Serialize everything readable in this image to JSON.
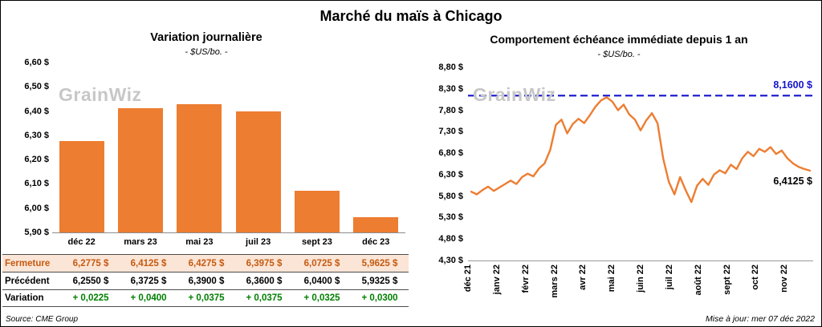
{
  "title": "Marché du maïs à Chicago",
  "watermark": "GrainWiz",
  "colors": {
    "close_row_bg": "#FBE5D6",
    "close_text": "#C55A11",
    "variation_text": "#008000"
  },
  "footer": {
    "source": "Source: CME Group",
    "updated": "Mise à jour: mer 07 déc 2022"
  },
  "table": {
    "rows": [
      {
        "label": "Fermeture",
        "style": "close",
        "values": [
          "6,2775  $",
          "6,4125  $",
          "6,4275  $",
          "6,3975  $",
          "6,0725  $",
          "5,9625  $"
        ]
      },
      {
        "label": "Précédent",
        "style": "prev",
        "values": [
          "6,2550  $",
          "6,3725  $",
          "6,3900  $",
          "6,3600  $",
          "6,0400  $",
          "5,9325  $"
        ]
      },
      {
        "label": "Variation",
        "style": "var",
        "values": [
          "+ 0,0225",
          "+ 0,0400",
          "+ 0,0375",
          "+ 0,0375",
          "+ 0,0325",
          "+ 0,0300"
        ]
      }
    ]
  },
  "chart_data": [
    {
      "type": "bar",
      "title": "Variation journalière",
      "subtitle": "- $US/bo. -",
      "categories": [
        "déc 22",
        "mars 23",
        "mai 23",
        "juil 23",
        "sept 23",
        "déc 23"
      ],
      "values": [
        6.2775,
        6.4125,
        6.4275,
        6.3975,
        6.0725,
        5.9625
      ],
      "ylim": [
        5.9,
        6.6
      ],
      "y_tick_labels": [
        "6,60 $",
        "6,50 $",
        "6,40 $",
        "6,30 $",
        "6,20 $",
        "6,10 $",
        "6,00 $",
        "5,90 $"
      ],
      "bar_color": "#ED7D31",
      "grid": false,
      "xlabel": "",
      "ylabel": ""
    },
    {
      "type": "line",
      "title": "Comportement échéance immédiate depuis 1 an",
      "subtitle": "- $US/bo. -",
      "x_tick_labels": [
        "déc 21",
        "janv 22",
        "févr 22",
        "mars 22",
        "avr 22",
        "mai 22",
        "juin 22",
        "juil 22",
        "août 22",
        "sept 22",
        "oct 22",
        "nov 22"
      ],
      "y_tick_labels": [
        "8,80 $",
        "8,30 $",
        "7,80 $",
        "7,30 $",
        "6,80 $",
        "6,30 $",
        "5,80 $",
        "5,30 $",
        "4,80 $",
        "4,30 $"
      ],
      "ylim": [
        4.3,
        8.8
      ],
      "line_color": "#ED7D31",
      "grid": false,
      "reference_line": {
        "value": 8.16,
        "label": "8,1600 $",
        "color": "#1414CC",
        "style": "dashed"
      },
      "last_value": 6.4125,
      "last_value_label": "6,4125 $",
      "series": [
        {
          "name": "échéance immédiate",
          "values": [
            5.92,
            5.86,
            5.96,
            6.04,
            5.94,
            6.02,
            6.1,
            6.18,
            6.1,
            6.26,
            6.34,
            6.28,
            6.46,
            6.58,
            6.9,
            7.48,
            7.6,
            7.28,
            7.5,
            7.62,
            7.52,
            7.7,
            7.9,
            8.05,
            8.12,
            8.02,
            7.82,
            7.95,
            7.72,
            7.6,
            7.35,
            7.58,
            7.75,
            7.52,
            6.7,
            6.15,
            5.86,
            6.26,
            5.95,
            5.68,
            6.06,
            6.22,
            6.08,
            6.32,
            6.42,
            6.35,
            6.55,
            6.45,
            6.7,
            6.85,
            6.75,
            6.92,
            6.85,
            6.96,
            6.8,
            6.88,
            6.7,
            6.58,
            6.5,
            6.45,
            6.4125
          ]
        }
      ]
    }
  ]
}
